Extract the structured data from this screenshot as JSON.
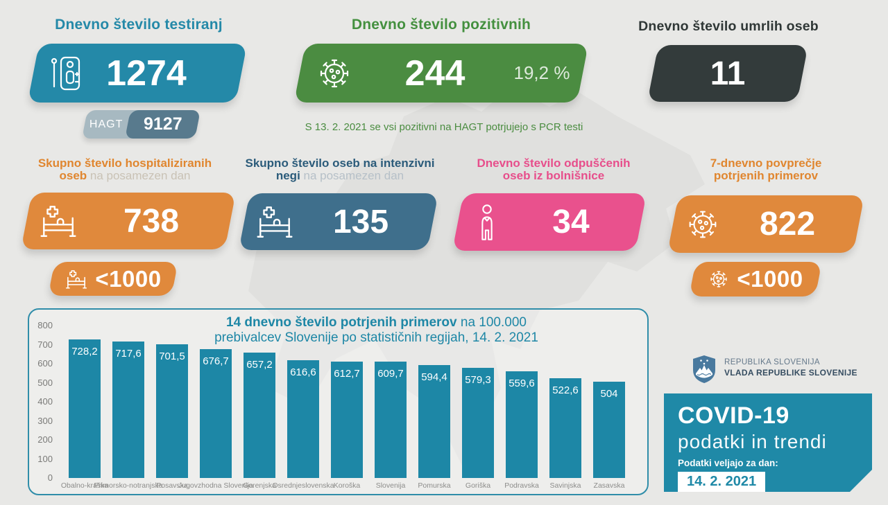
{
  "colors": {
    "background": "#e8e8e6",
    "teal": "#2489a8",
    "green": "#4b8c41",
    "dark": "#333b3b",
    "orange": "#e0893c",
    "slate": "#3f6f8c",
    "pink": "#e9518d",
    "hagt_light": "#a7b9c1",
    "hagt_dark": "#587a8d",
    "bar": "#1d87a6"
  },
  "row1": {
    "tests": {
      "title": "Dnevno število testiranj",
      "value": "1274",
      "icon": "antigen-test-icon",
      "sub": {
        "label": "HAGT",
        "value": "9127"
      }
    },
    "positive": {
      "title": "Dnevno število pozitivnih",
      "value": "244",
      "percent": "19,2 %",
      "icon": "virus-icon"
    },
    "deaths": {
      "title": "Dnevno število umrlih oseb",
      "value": "11"
    }
  },
  "note": "S 13. 2. 2021 se vsi pozitivni na HAGT potrjujejo s PCR testi",
  "row2": {
    "hospitalized": {
      "title_line1": "Skupno število hospitaliziranih",
      "title_line2_bold": "oseb",
      "title_line2_light": " na posamezen dan",
      "value": "738",
      "threshold": "<1000",
      "icon": "hospital-bed-icon"
    },
    "icu": {
      "title_line1": "Skupno število oseb na intenzivni",
      "title_line2_bold": "negi",
      "title_line2_light": " na posamezen dan",
      "value": "135",
      "icon": "hospital-bed-icon"
    },
    "discharged": {
      "title_line1": "Dnevno število odpuščenih",
      "title_line2": "oseb iz bolnišnice",
      "value": "34",
      "icon": "person-icon"
    },
    "avg7day": {
      "title_line1": "7-dnevno povprečje",
      "title_line2": "potrjenih primerov",
      "value": "822",
      "threshold": "<1000",
      "icon": "virus-icon"
    }
  },
  "chart_data": {
    "type": "bar",
    "title": "14 dnevno število potrjenih primerov na 100.000 prebivalcev Slovenije po statističnih regijah, 14. 2. 2021",
    "title_bold": "14 dnevno število potrjenih primerov",
    "title_regular": " na 100.000",
    "title_line2": "prebivalcev Slovenije po statističnih regijah, 14. 2. 2021",
    "categories": [
      "Obalno-kraška",
      "Primorsko-notranjska",
      "Posavska",
      "Jugovzhodna Slovenija",
      "Gorenjska",
      "Osrednjeslovenska",
      "Koroška",
      "Slovenija",
      "Pomurska",
      "Goriška",
      "Podravska",
      "Savinjska",
      "Zasavska"
    ],
    "values": [
      728.2,
      717.6,
      701.5,
      676.7,
      657.2,
      616.6,
      612.7,
      609.7,
      594.4,
      579.3,
      559.6,
      522.6,
      504
    ],
    "value_labels": [
      "728,2",
      "717,6",
      "701,5",
      "676,7",
      "657,2",
      "616,6",
      "612,7",
      "609,7",
      "594,4",
      "579,3",
      "559,6",
      "522,6",
      "504"
    ],
    "xlabel": "",
    "ylabel": "",
    "ylim": [
      0,
      800
    ],
    "yticks": [
      0,
      100,
      200,
      300,
      400,
      500,
      600,
      700,
      800
    ],
    "grid": false,
    "legend": null,
    "bar_color": "#1d87a6"
  },
  "footer": {
    "gov": {
      "icon": "slovenia-coat-of-arms-icon",
      "line1": "REPUBLIKA SLOVENIJA",
      "line2": "VLADA REPUBLIKE SLOVENIJE"
    },
    "covid": {
      "title": "COVID-19",
      "subtitle": "podatki in trendi",
      "date_label": "Podatki veljajo za dan:",
      "date_value": "14. 2. 2021"
    }
  }
}
